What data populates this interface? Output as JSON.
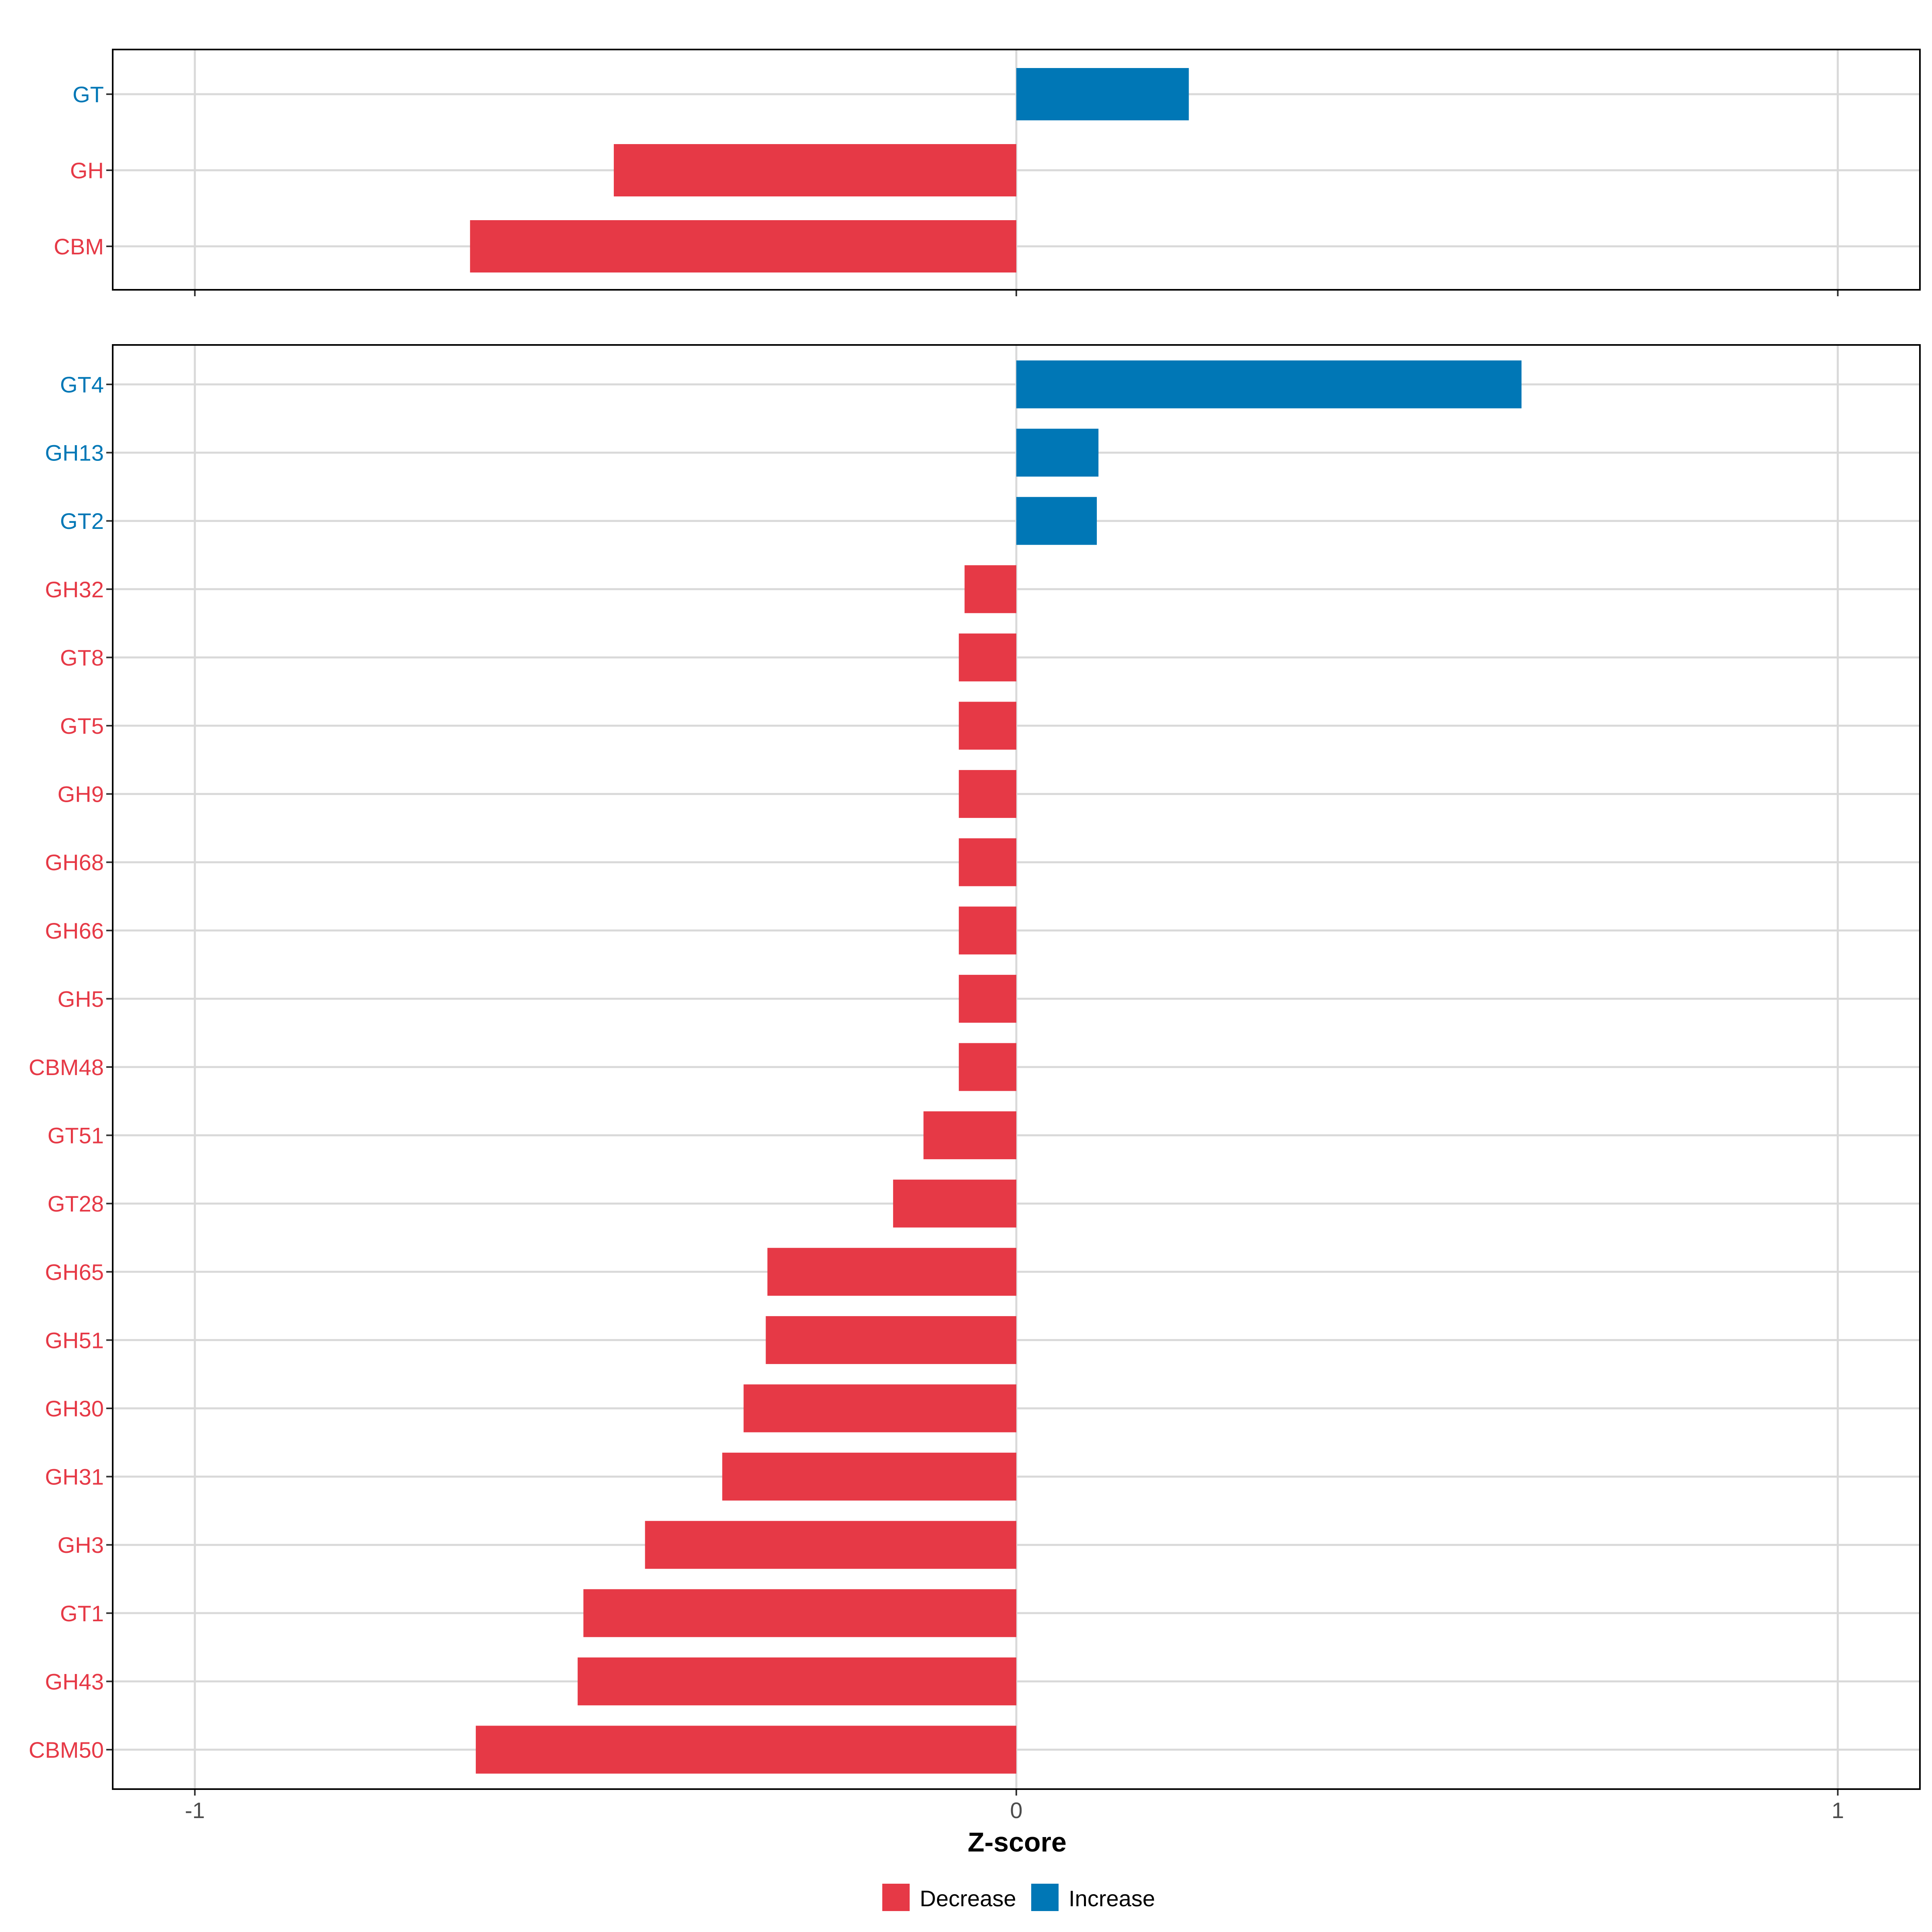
{
  "chart_data": [
    {
      "type": "bar",
      "orientation": "horizontal",
      "panel": "top",
      "categories": [
        "GT",
        "GH",
        "CBM"
      ],
      "values": [
        0.21,
        -0.49,
        -0.665
      ],
      "xlim": [
        -1.1,
        1.1
      ],
      "xticks": [
        -1,
        0,
        1
      ]
    },
    {
      "type": "bar",
      "orientation": "horizontal",
      "panel": "bottom",
      "categories": [
        "GT4",
        "GH13",
        "GT2",
        "GH32",
        "GT8",
        "GT5",
        "GH9",
        "GH68",
        "GH66",
        "GH5",
        "CBM48",
        "GT51",
        "GT28",
        "GH65",
        "GH51",
        "GH30",
        "GH31",
        "GH3",
        "GT1",
        "GH43",
        "CBM50"
      ],
      "values": [
        0.615,
        0.1,
        0.098,
        -0.063,
        -0.07,
        -0.07,
        -0.07,
        -0.07,
        -0.07,
        -0.07,
        -0.07,
        -0.113,
        -0.15,
        -0.303,
        -0.305,
        -0.332,
        -0.358,
        -0.452,
        -0.527,
        -0.534,
        -0.658
      ],
      "xlim": [
        -1.1,
        1.1
      ],
      "xticks": [
        -1,
        0,
        1
      ],
      "xtick_labels": [
        "-1",
        "0",
        "1"
      ],
      "xlabel": "Z-score"
    }
  ],
  "legend": {
    "position": "bottom",
    "items": [
      {
        "label": "Decrease",
        "color": "#E63946"
      },
      {
        "label": "Increase",
        "color": "#0077B6"
      }
    ]
  },
  "colors": {
    "decrease": "#E63946",
    "increase": "#0077B6",
    "grid": "#d9d9d9",
    "axis_text": "#4d4d4d"
  }
}
